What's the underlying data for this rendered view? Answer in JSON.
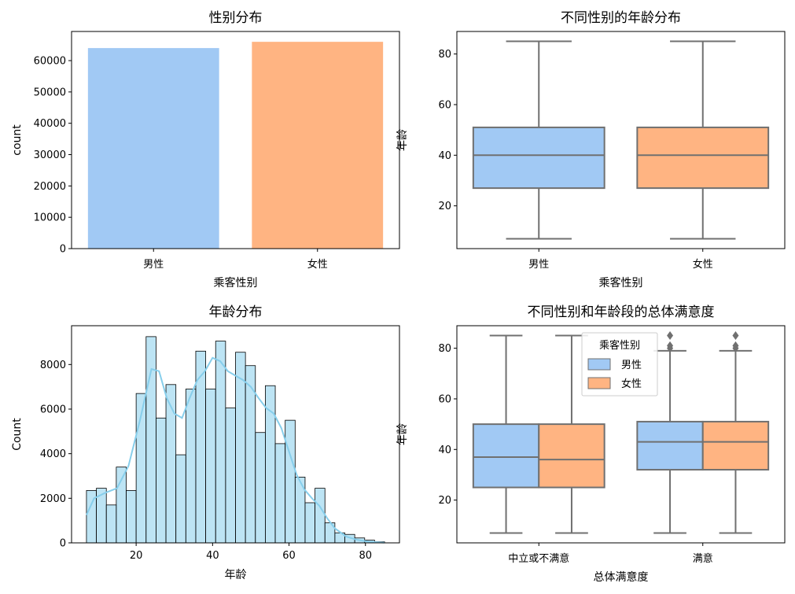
{
  "chart_data": [
    {
      "type": "bar",
      "title": "性别分布",
      "xlabel": "乘客性别",
      "ylabel": "count",
      "categories": [
        "男性",
        "女性"
      ],
      "values": [
        64000,
        66000
      ],
      "ylim": [
        0,
        69300
      ],
      "yticks": [
        0,
        10000,
        20000,
        30000,
        40000,
        50000,
        60000
      ],
      "colors": [
        "#a1c9f4",
        "#ffb482"
      ]
    },
    {
      "type": "box",
      "title": "不同性别的年龄分布",
      "xlabel": "乘客性别",
      "ylabel": "年龄",
      "categories": [
        "男性",
        "女性"
      ],
      "ylim": [
        3.1,
        88.9
      ],
      "yticks": [
        20,
        40,
        60,
        80
      ],
      "boxes": [
        {
          "category": "男性",
          "min": 7,
          "q1": 27,
          "median": 40,
          "q3": 51,
          "max": 85,
          "color": "#a1c9f4"
        },
        {
          "category": "女性",
          "min": 7,
          "q1": 27,
          "median": 40,
          "q3": 51,
          "max": 85,
          "color": "#ffb482"
        }
      ]
    },
    {
      "type": "histogram",
      "title": "年龄分布",
      "xlabel": "年龄",
      "ylabel": "Count",
      "xlim": [
        3.1,
        88.9
      ],
      "ylim": [
        0,
        9740
      ],
      "xticks": [
        20,
        40,
        60,
        80
      ],
      "yticks": [
        0,
        2000,
        4000,
        6000,
        8000
      ],
      "bin_edges": [
        7,
        9.6,
        12.2,
        14.8,
        17.4,
        20,
        22.6,
        25.2,
        27.8,
        30.4,
        33,
        35.6,
        38.2,
        40.8,
        43.4,
        46,
        48.6,
        51.2,
        53.8,
        56.4,
        59,
        61.6,
        64.2,
        66.8,
        69.4,
        72,
        74.6,
        77.2,
        79.8,
        82.4,
        85
      ],
      "counts": [
        2350,
        2450,
        1700,
        3400,
        2350,
        6700,
        9250,
        5600,
        7100,
        3950,
        6900,
        8600,
        6900,
        9050,
        6050,
        8550,
        7950,
        4950,
        7050,
        4450,
        5500,
        2950,
        1800,
        2450,
        900,
        450,
        380,
        220,
        120,
        50
      ],
      "kde": {
        "x": [
          7,
          9,
          12,
          15,
          18,
          21,
          24,
          26,
          28,
          30,
          32,
          34,
          36,
          38,
          40,
          42,
          44,
          46,
          48,
          50,
          52,
          54,
          56,
          58,
          60,
          62,
          64,
          66,
          68,
          70,
          72,
          75,
          78,
          81,
          85
        ],
        "y": [
          1250,
          2000,
          2250,
          2450,
          3450,
          5500,
          7800,
          7700,
          6500,
          5800,
          5600,
          6500,
          7300,
          7700,
          8300,
          8150,
          7700,
          7500,
          7300,
          7000,
          6500,
          6050,
          5800,
          5150,
          4100,
          3050,
          2400,
          2000,
          1650,
          1100,
          650,
          280,
          130,
          50,
          10
        ]
      },
      "bar_color": "#87ceeb",
      "line_color": "#87ceeb"
    },
    {
      "type": "box",
      "title": "不同性别和年龄段的总体满意度",
      "xlabel": "总体满意度",
      "ylabel": "年龄",
      "categories": [
        "中立或不满意",
        "满意"
      ],
      "ylim": [
        3.1,
        88.9
      ],
      "yticks": [
        20,
        40,
        60,
        80
      ],
      "legend": {
        "title": "乘客性别",
        "placement": "top-center",
        "entries": [
          "男性",
          "女性"
        ]
      },
      "series": [
        {
          "name": "男性",
          "color": "#a1c9f4",
          "boxes": [
            {
              "category": "中立或不满意",
              "min": 7,
              "q1": 25,
              "median": 37,
              "q3": 50,
              "max": 85,
              "outliers": []
            },
            {
              "category": "满意",
              "min": 7,
              "q1": 32,
              "median": 43,
              "q3": 51,
              "max": 79,
              "outliers": [
                80,
                81,
                85
              ]
            }
          ]
        },
        {
          "name": "女性",
          "color": "#ffb482",
          "boxes": [
            {
              "category": "中立或不满意",
              "min": 7,
              "q1": 25,
              "median": 36,
              "q3": 50,
              "max": 85,
              "outliers": []
            },
            {
              "category": "满意",
              "min": 7,
              "q1": 32,
              "median": 43,
              "q3": 51,
              "max": 79,
              "outliers": [
                80,
                81,
                85
              ]
            }
          ]
        }
      ]
    }
  ]
}
